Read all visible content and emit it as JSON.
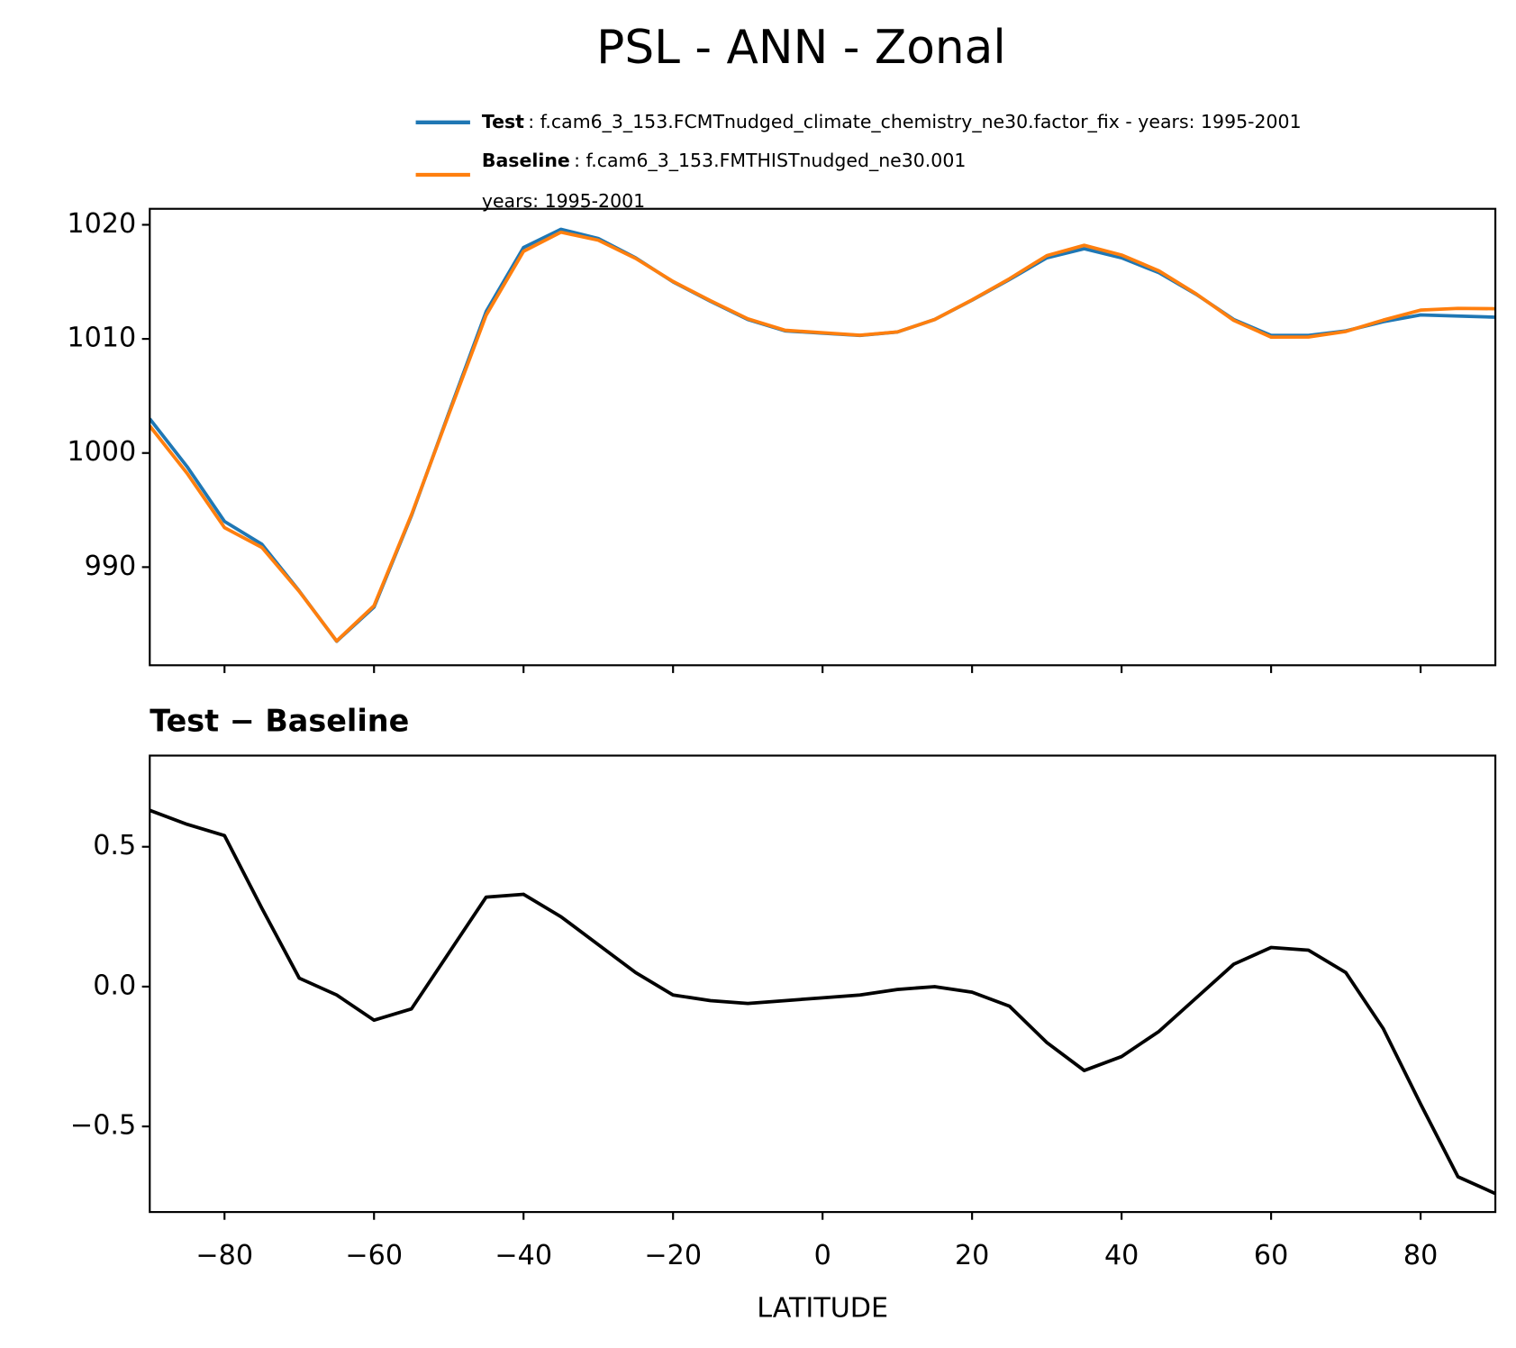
{
  "title": "PSL - ANN - Zonal",
  "chart_data": [
    {
      "type": "line",
      "x": [
        -90,
        -85,
        -80,
        -75,
        -70,
        -65,
        -60,
        -55,
        -50,
        -45,
        -40,
        -35,
        -30,
        -25,
        -20,
        -15,
        -10,
        -5,
        0,
        5,
        10,
        15,
        20,
        25,
        30,
        35,
        40,
        45,
        50,
        55,
        60,
        65,
        70,
        75,
        80,
        85,
        90
      ],
      "series": [
        {
          "name": "Test",
          "legend_text": [
            ": f.cam6_3_153.FCMTnudged_climate_chemistry_ne30.factor_fix - years: 1995-2001"
          ],
          "color": "#1f77b4",
          "values": [
            1003.0,
            998.8,
            994.0,
            992.0,
            987.9,
            983.5,
            986.5,
            994.5,
            1003.5,
            1012.4,
            1018.0,
            1019.6,
            1018.8,
            1017.1,
            1015.0,
            1013.3,
            1011.7,
            1010.7,
            1010.5,
            1010.3,
            1010.6,
            1011.7,
            1013.4,
            1015.2,
            1017.1,
            1017.9,
            1017.1,
            1015.8,
            1013.9,
            1011.7,
            1010.3,
            1010.3,
            1010.7,
            1011.5,
            1012.1,
            1012.0,
            1011.9
          ]
        },
        {
          "name": "Baseline",
          "legend_text": [
            ": f.cam6_3_153.FMTHISTnudged_ne30.001",
            "years: 1995-2001"
          ],
          "color": "#ff7f0e",
          "values": [
            1002.37,
            998.22,
            993.46,
            991.72,
            987.87,
            983.53,
            986.62,
            994.58,
            1003.38,
            1012.08,
            1017.67,
            1019.35,
            1018.65,
            1017.05,
            1015.03,
            1013.35,
            1011.76,
            1010.75,
            1010.54,
            1010.33,
            1010.61,
            1011.7,
            1013.42,
            1015.27,
            1017.3,
            1018.2,
            1017.35,
            1015.96,
            1013.94,
            1011.62,
            1010.16,
            1010.17,
            1010.65,
            1011.65,
            1012.52,
            1012.68,
            1012.64
          ]
        }
      ],
      "xlim": [
        -90,
        90
      ],
      "xticks": [
        -80,
        -60,
        -40,
        -20,
        0,
        20,
        40,
        60,
        80
      ],
      "ylim": [
        981.4,
        1021.4
      ],
      "yticks": [
        990,
        1000,
        1010,
        1020
      ]
    },
    {
      "type": "line",
      "title": "Test − Baseline",
      "xlabel": "LATITUDE",
      "x": [
        -90,
        -85,
        -80,
        -75,
        -70,
        -65,
        -60,
        -55,
        -50,
        -45,
        -40,
        -35,
        -30,
        -25,
        -20,
        -15,
        -10,
        -5,
        0,
        5,
        10,
        15,
        20,
        25,
        30,
        35,
        40,
        45,
        50,
        55,
        60,
        65,
        70,
        75,
        80,
        85,
        90
      ],
      "color": "#000000",
      "values": [
        0.63,
        0.58,
        0.54,
        0.28,
        0.03,
        -0.03,
        -0.12,
        -0.08,
        0.12,
        0.32,
        0.33,
        0.25,
        0.15,
        0.05,
        -0.03,
        -0.05,
        -0.06,
        -0.05,
        -0.04,
        -0.03,
        -0.01,
        0.0,
        -0.02,
        -0.07,
        -0.2,
        -0.3,
        -0.25,
        -0.16,
        -0.04,
        0.08,
        0.14,
        0.13,
        0.05,
        -0.15,
        -0.42,
        -0.68,
        -0.74
      ],
      "xlim": [
        -90,
        90
      ],
      "xticks": [
        {
          "value": -80,
          "label": "−80"
        },
        {
          "value": -60,
          "label": "−60"
        },
        {
          "value": -40,
          "label": "−40"
        },
        {
          "value": -20,
          "label": "−20"
        },
        0,
        20,
        40,
        60,
        80
      ],
      "ylim": [
        -0.806,
        0.826
      ],
      "yticks": [
        {
          "value": -0.5,
          "label": "−0.5"
        },
        {
          "value": 0,
          "label": "0.0"
        },
        0.5
      ]
    }
  ]
}
